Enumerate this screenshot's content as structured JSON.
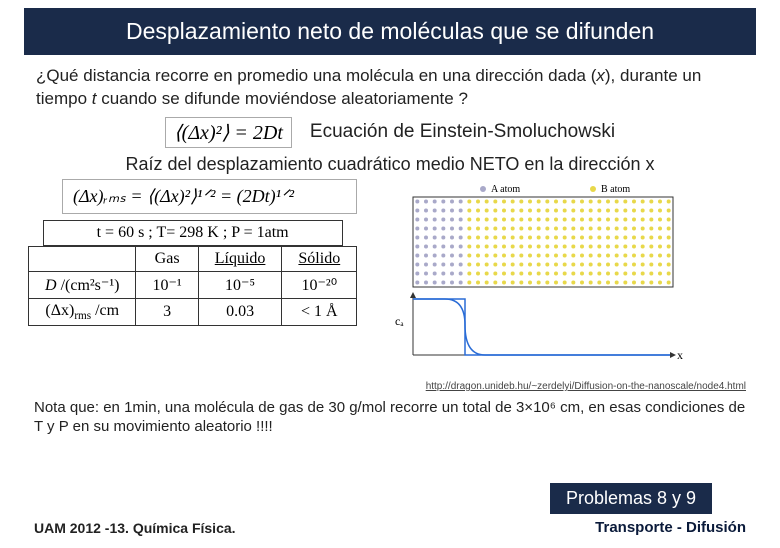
{
  "title": "Desplazamiento neto de moléculas que se difunden",
  "question_part1": "¿Qué distancia recorre en promedio una molécula en una dirección dada (",
  "question_var": "x",
  "question_part2": "), durante un tiempo ",
  "question_var2": "t",
  "question_part3": " cuando se difunde moviéndose aleatoriamente ?",
  "eq1": "⟨(Δx)²⟩ = 2Dt",
  "eq1_label": "Ecuación de Einstein-Smoluchowski",
  "rms_label": "Raíz del desplazamiento cuadrático medio NETO en la dirección x",
  "eq2": "(Δx)ᵣₘₛ = ⟨(Δx)²⟩¹ᐟ² = (2Dt)¹ᐟ²",
  "conditions": "t = 60 s ;  T= 298 K ;  P = 1atm",
  "table": {
    "headers": [
      "",
      "Gas",
      "Líquido",
      "Sólido"
    ],
    "rows": [
      {
        "label_html": "<i>D</i> /(cm²s⁻¹)",
        "cells": [
          "10⁻¹",
          "10⁻⁵",
          "10⁻²⁰"
        ]
      },
      {
        "label_html": "(Δx)<sub>rms</sub> /cm",
        "cells": [
          "3",
          "0.03",
          "< 1 Å"
        ]
      }
    ]
  },
  "diagram": {
    "a_label": "A atom",
    "b_label": "B atom",
    "a_color": "#a9a9c9",
    "b_color": "#e8d84a",
    "axis_x": "x",
    "axis_y": "cₐ",
    "cols": 30,
    "rows": 10,
    "a_cols": 6,
    "curve_color": "#2a6cd6"
  },
  "source_link": "http://dragon.unideb.hu/~zerdelyi/Diffusion-on-the-nanoscale/node4.html",
  "note_html": "Nota que: en 1min, una molécula de gas de 30 g/mol recorre un total de 3×10⁶ cm, en esas condiciones de T y P en su movimiento aleatorio !!!!",
  "problem_box": "Problemas 8 y 9",
  "footer_left": "UAM 2012 -13.   Química Física.",
  "footer_right": "Transporte - Difusión",
  "colors": {
    "bar": "#1a2b4a"
  }
}
